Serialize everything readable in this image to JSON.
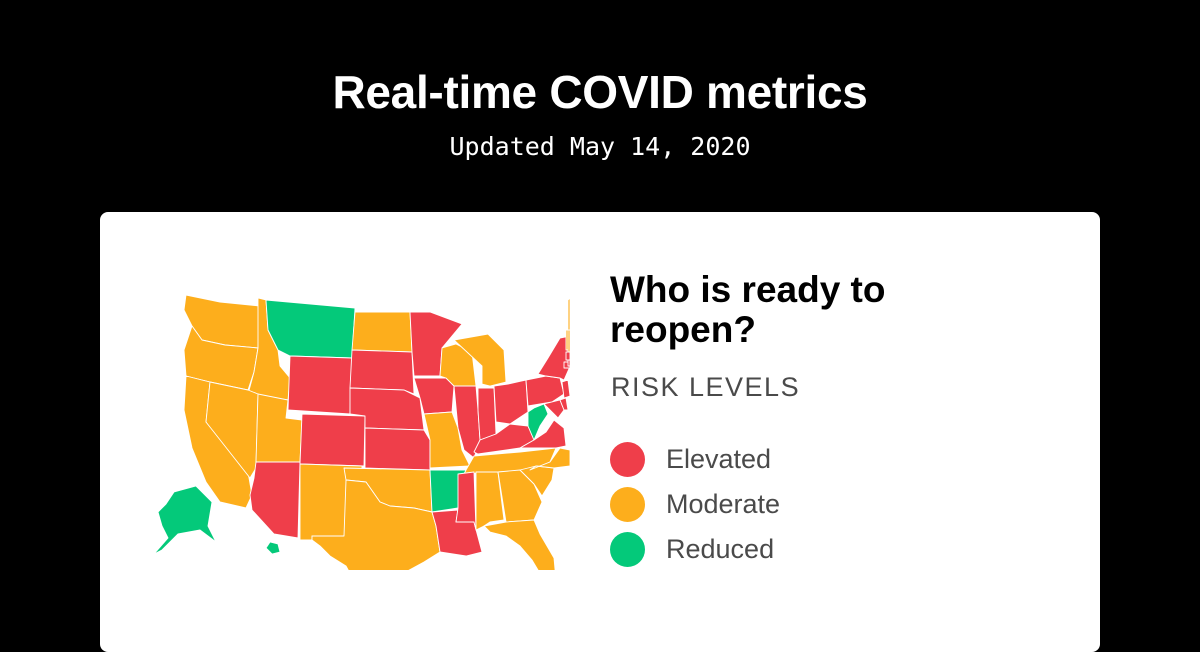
{
  "header": {
    "title": "Real-time COVID metrics",
    "updated": "Updated May 14, 2020"
  },
  "panel": {
    "title": "Who is ready to reopen?",
    "levels_heading": "RISK LEVELS"
  },
  "legend": [
    {
      "label": "Elevated",
      "key": "elevated"
    },
    {
      "label": "Moderate",
      "key": "moderate"
    },
    {
      "label": "Reduced",
      "key": "reduced"
    }
  ],
  "colors": {
    "elevated": "#ef3e4a",
    "moderate": "#fdae1c",
    "reduced": "#04c97a",
    "background": "#000000",
    "card": "#ffffff"
  },
  "map": {
    "region": "United States",
    "state_levels": {
      "WA": "moderate",
      "OR": "moderate",
      "CA": "moderate",
      "ID": "moderate",
      "NV": "moderate",
      "UT": "moderate",
      "AZ": "elevated",
      "MT": "reduced",
      "WY": "elevated",
      "CO": "elevated",
      "NM": "moderate",
      "ND": "moderate",
      "SD": "elevated",
      "NE": "elevated",
      "KS": "elevated",
      "OK": "moderate",
      "TX": "moderate",
      "MN": "elevated",
      "IA": "elevated",
      "MO": "moderate",
      "AR": "reduced",
      "LA": "elevated",
      "WI": "moderate",
      "IL": "elevated",
      "MI": "moderate",
      "IN": "elevated",
      "OH": "elevated",
      "KY": "elevated",
      "TN": "moderate",
      "MS": "elevated",
      "AL": "moderate",
      "GA": "moderate",
      "FL": "moderate",
      "SC": "moderate",
      "NC": "moderate",
      "VA": "elevated",
      "WV": "reduced",
      "PA": "elevated",
      "NY": "elevated",
      "VT": "moderate",
      "NH": "moderate",
      "ME": "moderate",
      "MA": "elevated",
      "CT": "elevated",
      "RI": "elevated",
      "NJ": "elevated",
      "DE": "elevated",
      "MD": "elevated",
      "AK": "reduced",
      "HI": "reduced"
    }
  }
}
